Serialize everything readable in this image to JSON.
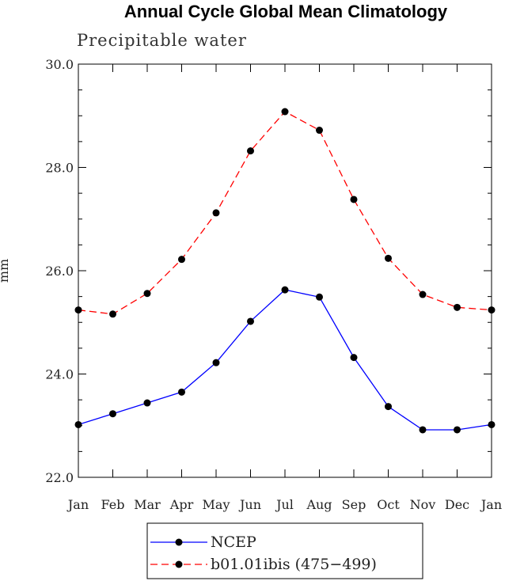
{
  "chart_data": {
    "type": "line",
    "title": "Annual Cycle Global Mean Climatology",
    "subtitle": "Precipitable water",
    "xlabel": "",
    "ylabel": "mm",
    "categories": [
      "Jan",
      "Feb",
      "Mar",
      "Apr",
      "May",
      "Jun",
      "Jul",
      "Aug",
      "Sep",
      "Oct",
      "Nov",
      "Dec",
      "Jan"
    ],
    "ylim": [
      22.0,
      30.0
    ],
    "yticks": [
      "22.0",
      "24.0",
      "26.0",
      "28.0",
      "30.0"
    ],
    "ytick_values": [
      22,
      24,
      26,
      28,
      30
    ],
    "grid": false,
    "legend_position": "bottom",
    "series": [
      {
        "name": "NCEP",
        "color": "#0000ff",
        "dash": "solid",
        "marker": "filled-circle",
        "values": [
          23.02,
          23.23,
          23.44,
          23.65,
          24.22,
          25.02,
          25.63,
          25.49,
          24.32,
          23.37,
          22.92,
          22.92,
          23.02
        ]
      },
      {
        "name": "b01.01ibis (475−499)",
        "color": "#ff0000",
        "dash": "dashed",
        "marker": "filled-circle",
        "values": [
          25.24,
          25.16,
          25.56,
          26.22,
          27.12,
          28.32,
          29.08,
          28.72,
          27.38,
          26.24,
          25.54,
          25.29,
          25.24
        ]
      }
    ]
  }
}
